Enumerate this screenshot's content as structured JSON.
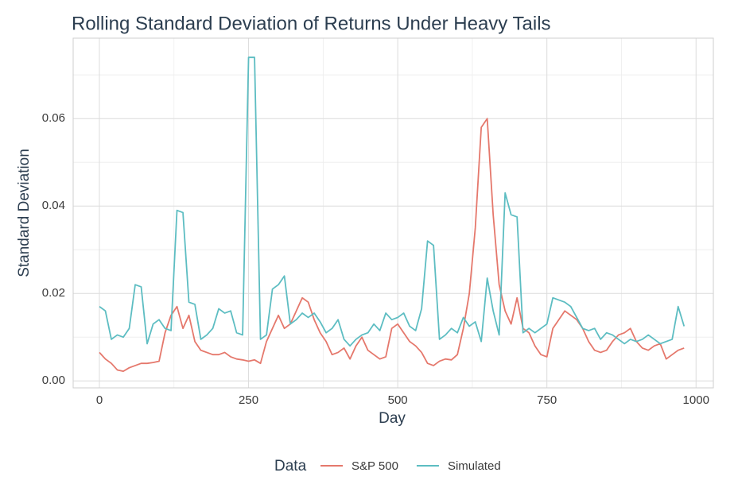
{
  "chart_data": {
    "type": "line",
    "title": "Rolling Standard Deviation of Returns Under Heavy Tails",
    "x_label": "Day",
    "y_label": "Standard Deviation",
    "legend_title": "Data",
    "legend_position": "bottom",
    "grid": true,
    "xlim": [
      -44,
      1029
    ],
    "ylim": [
      -0.0016,
      0.0784
    ],
    "xticks": [
      0,
      250,
      500,
      750,
      1000
    ],
    "yticks": [
      {
        "value": 0,
        "label": "0.00"
      },
      0.02,
      0.04,
      0.06
    ],
    "x": [
      0,
      10,
      20,
      30,
      40,
      50,
      60,
      70,
      80,
      90,
      100,
      110,
      120,
      130,
      140,
      150,
      160,
      170,
      180,
      190,
      200,
      210,
      220,
      230,
      240,
      250,
      260,
      270,
      280,
      290,
      300,
      310,
      320,
      330,
      340,
      350,
      360,
      370,
      380,
      390,
      400,
      410,
      420,
      430,
      440,
      450,
      460,
      470,
      480,
      490,
      500,
      510,
      520,
      530,
      540,
      550,
      560,
      570,
      580,
      590,
      600,
      610,
      620,
      630,
      640,
      650,
      660,
      670,
      680,
      690,
      700,
      710,
      720,
      730,
      740,
      750,
      760,
      770,
      780,
      790,
      800,
      810,
      820,
      830,
      840,
      850,
      860,
      870,
      880,
      890,
      900,
      910,
      920,
      930,
      940,
      950,
      960,
      970,
      980
    ],
    "series": [
      {
        "name": "S&P 500",
        "color": "#e5786c",
        "values": [
          0.0065,
          0.005,
          0.004,
          0.0025,
          0.0022,
          0.003,
          0.0035,
          0.004,
          0.004,
          0.0042,
          0.0045,
          0.011,
          0.015,
          0.017,
          0.012,
          0.015,
          0.009,
          0.007,
          0.0065,
          0.006,
          0.006,
          0.0065,
          0.0055,
          0.005,
          0.0048,
          0.0045,
          0.0048,
          0.004,
          0.009,
          0.012,
          0.015,
          0.012,
          0.013,
          0.016,
          0.019,
          0.018,
          0.014,
          0.011,
          0.009,
          0.006,
          0.0065,
          0.0075,
          0.005,
          0.008,
          0.01,
          0.007,
          0.006,
          0.005,
          0.0055,
          0.012,
          0.013,
          0.011,
          0.009,
          0.008,
          0.0065,
          0.004,
          0.0035,
          0.0045,
          0.005,
          0.0048,
          0.006,
          0.012,
          0.02,
          0.035,
          0.058,
          0.06,
          0.038,
          0.022,
          0.016,
          0.013,
          0.019,
          0.012,
          0.011,
          0.008,
          0.006,
          0.0055,
          0.012,
          0.014,
          0.016,
          0.015,
          0.014,
          0.012,
          0.009,
          0.007,
          0.0065,
          0.007,
          0.009,
          0.0105,
          0.011,
          0.012,
          0.009,
          0.0075,
          0.007,
          0.008,
          0.0085,
          0.005,
          0.006,
          0.007,
          0.0075
        ]
      },
      {
        "name": "Simulated",
        "color": "#5dbdc2",
        "values": [
          0.017,
          0.016,
          0.0095,
          0.0105,
          0.01,
          0.012,
          0.022,
          0.0215,
          0.0085,
          0.013,
          0.014,
          0.012,
          0.0115,
          0.039,
          0.0385,
          0.018,
          0.0175,
          0.0095,
          0.0105,
          0.012,
          0.0165,
          0.0155,
          0.016,
          0.011,
          0.0105,
          0.074,
          0.074,
          0.0095,
          0.0105,
          0.021,
          0.022,
          0.024,
          0.013,
          0.014,
          0.0155,
          0.0145,
          0.0155,
          0.0135,
          0.011,
          0.012,
          0.014,
          0.0095,
          0.008,
          0.0095,
          0.0105,
          0.011,
          0.013,
          0.0115,
          0.0155,
          0.014,
          0.0145,
          0.0155,
          0.0125,
          0.0115,
          0.0165,
          0.032,
          0.031,
          0.0095,
          0.0105,
          0.012,
          0.011,
          0.0145,
          0.0125,
          0.0135,
          0.009,
          0.0235,
          0.016,
          0.0105,
          0.043,
          0.038,
          0.0375,
          0.011,
          0.012,
          0.011,
          0.012,
          0.013,
          0.019,
          0.0185,
          0.018,
          0.017,
          0.0145,
          0.012,
          0.0115,
          0.012,
          0.0095,
          0.011,
          0.0105,
          0.0095,
          0.0085,
          0.0095,
          0.009,
          0.0095,
          0.0105,
          0.0095,
          0.0085,
          0.009,
          0.0095,
          0.017,
          0.0125
        ]
      }
    ]
  }
}
